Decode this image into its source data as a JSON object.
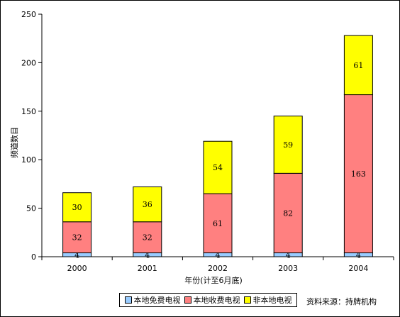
{
  "chart_data": {
    "type": "bar",
    "stacked": true,
    "categories": [
      "2000",
      "2001",
      "2002",
      "2003",
      "2004"
    ],
    "series": [
      {
        "name": "本地免费电视",
        "values": [
          4,
          4,
          4,
          4,
          4
        ],
        "color": "#99ccff"
      },
      {
        "name": "本地收费电视",
        "values": [
          32,
          32,
          61,
          82,
          163
        ],
        "color": "#ff8080"
      },
      {
        "name": "非本地电视",
        "values": [
          30,
          36,
          54,
          59,
          61
        ],
        "color": "#ffff00"
      }
    ],
    "xlabel": "年份(计至6月底)",
    "ylabel": "频道数目",
    "ylim": [
      0,
      250
    ],
    "yticks": [
      0,
      50,
      100,
      150,
      200,
      250
    ],
    "grid": false,
    "legend": "bottom",
    "source": "资料来源：持牌机构"
  }
}
